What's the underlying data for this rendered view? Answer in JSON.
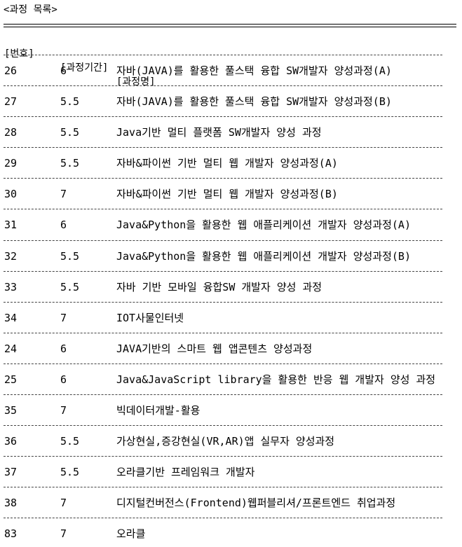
{
  "page": {
    "title": "<과정 목록>"
  },
  "header": {
    "no_label": "[번호]",
    "period_label": "[과정기간]",
    "name_label": "[과정명]"
  },
  "rows": [
    {
      "no": "26",
      "period": "6",
      "name": "자바(JAVA)를 활용한 풀스택 융합 SW개발자 양성과정(A)"
    },
    {
      "no": "27",
      "period": "5.5",
      "name": "자바(JAVA)를 활용한 풀스택 융합 SW개발자 양성과정(B)"
    },
    {
      "no": "28",
      "period": "5.5",
      "name": "Java기반 멀티 플랫폼 SW개발자 양성 과정"
    },
    {
      "no": "29",
      "period": "5.5",
      "name": "자바&파이썬 기반 멀티 웹 개발자 양성과정(A)"
    },
    {
      "no": "30",
      "period": "7",
      "name": "자바&파이썬 기반 멀티 웹 개발자 양성과정(B)"
    },
    {
      "no": "31",
      "period": "6",
      "name": "Java&Python을 활용한 웹 애플리케이션 개발자 양성과정(A)"
    },
    {
      "no": "32",
      "period": "5.5",
      "name": "Java&Python을 활용한 웹 애플리케이션 개발자 양성과정(B)"
    },
    {
      "no": "33",
      "period": "5.5",
      "name": "자바 기반 모바일 융합SW 개발자 양성 과정"
    },
    {
      "no": "34",
      "period": "7",
      "name": "IOT사물인터넷"
    },
    {
      "no": "24",
      "period": "6",
      "name": "JAVA기반의 스마트 웹 앱콘텐츠 양성과정"
    },
    {
      "no": "25",
      "period": "6",
      "name": "Java&JavaScript library을 활용한 반응 웹 개발자 양성 과정"
    },
    {
      "no": "35",
      "period": "7",
      "name": "빅데이터개발-활용"
    },
    {
      "no": "36",
      "period": "5.5",
      "name": "가상현실,증강현실(VR,AR)앱 실무자 양성과정"
    },
    {
      "no": "37",
      "period": "5.5",
      "name": "오라클기반 프레임워크 개발자"
    },
    {
      "no": "38",
      "period": "7",
      "name": "디지털컨버전스(Frontend)웹퍼블리셔/프론트엔드 취업과정"
    },
    {
      "no": "83",
      "period": "7",
      "name": "오라클"
    }
  ]
}
